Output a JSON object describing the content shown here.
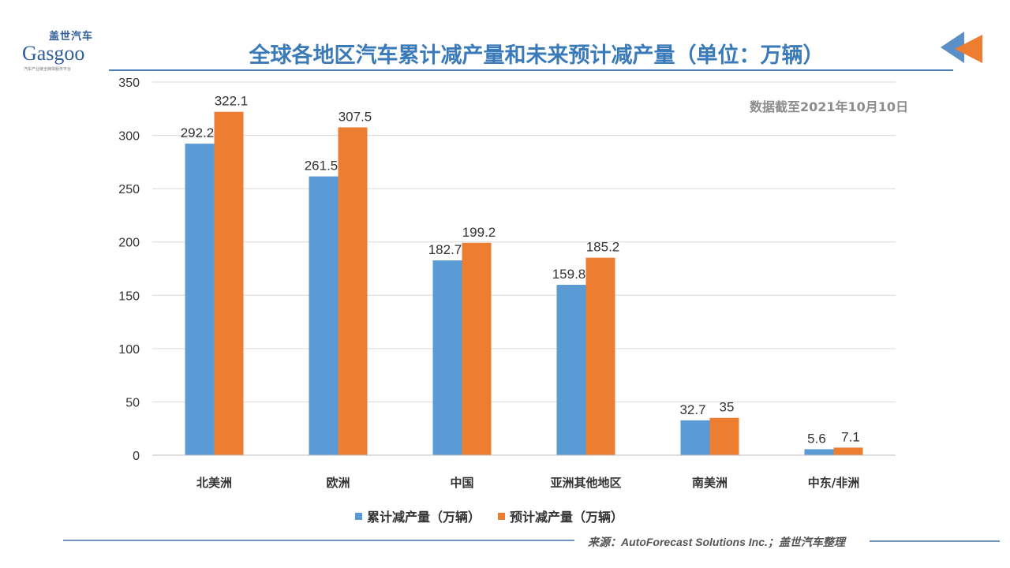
{
  "logo": {
    "cn": "盖世汽车",
    "en": "Gasgoo",
    "tagline": "汽车产业链全媒体服务平台"
  },
  "title": "全球各地区汽车累计减产量和未来预计减产量（单位：万辆）",
  "note": "数据截至2021年10月10日",
  "footer": "来源：AutoForecast Solutions Inc.；盖世汽车整理",
  "colors": {
    "series1": "#5B9BD5",
    "series2": "#ED7D31",
    "title": "#3A7AB9"
  },
  "chart_data": {
    "type": "bar",
    "categories": [
      "北美洲",
      "欧洲",
      "中国",
      "亚洲其他地区",
      "南美洲",
      "中东/非洲"
    ],
    "series": [
      {
        "name": "累计减产量（万辆）",
        "values": [
          292.2,
          261.5,
          182.7,
          159.8,
          32.7,
          5.6
        ],
        "labels": [
          "292.2",
          "261.5",
          "182.7",
          "159.8",
          "32.7",
          "5.6"
        ]
      },
      {
        "name": "预计减产量（万辆）",
        "values": [
          322.1,
          307.5,
          199.2,
          185.2,
          35,
          7.1
        ],
        "labels": [
          "322.1",
          "307.5",
          "199.2",
          "185.2",
          "35",
          "7.1"
        ]
      }
    ],
    "yticks": [
      "0",
      "50",
      "100",
      "150",
      "200",
      "250",
      "300",
      "350"
    ],
    "ylim": [
      0,
      350
    ],
    "grid": true,
    "legend": "bottom"
  }
}
